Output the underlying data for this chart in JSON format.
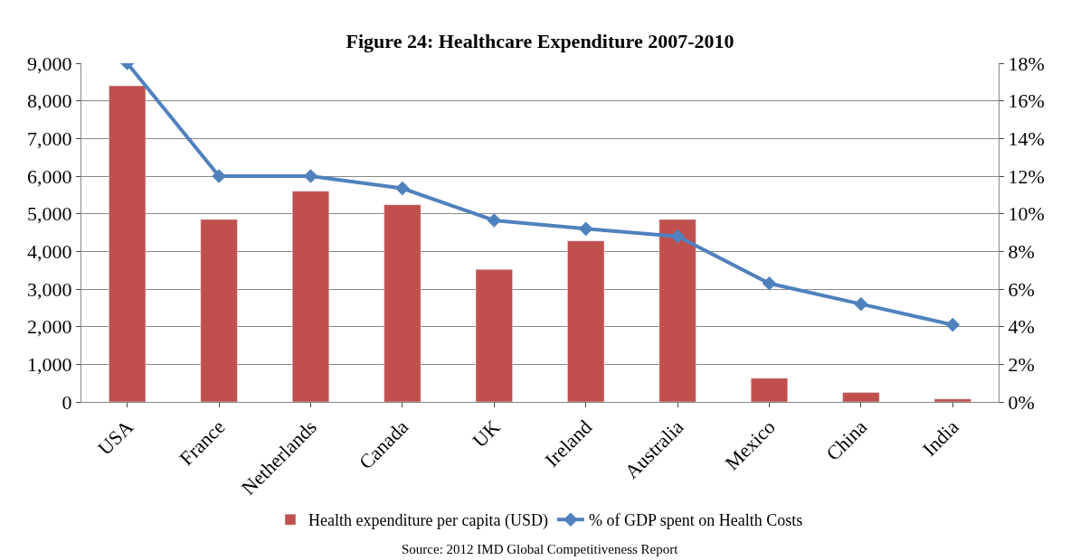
{
  "chart_data": {
    "type": "bar",
    "title": "Figure 24: Healthcare Expenditure 2007-2010",
    "categories": [
      "USA",
      "France",
      "Netherlands",
      "Canada",
      "UK",
      "Ireland",
      "Australia",
      "Mexico",
      "China",
      "India"
    ],
    "series": [
      {
        "name": "Health expenditure per capita (USD)",
        "color": "#c0504d",
        "values": [
          8400,
          4850,
          5600,
          5240,
          3520,
          4280,
          4850,
          630,
          250,
          80
        ]
      },
      {
        "name": "% of GDP spent on Health Costs",
        "color": "#4f81bd",
        "type": "line",
        "axis": "y2",
        "marker": "diamond",
        "values": [
          18,
          12,
          12,
          11.35,
          9.65,
          9.2,
          8.8,
          6.3,
          5.2,
          4.1
        ]
      }
    ],
    "ylim": [
      0,
      9000
    ],
    "yticks": [
      {
        "value": 0,
        "label": "0"
      },
      {
        "value": 1000,
        "label": "1,000"
      },
      {
        "value": 2000,
        "label": "2,000"
      },
      {
        "value": 3000,
        "label": "3,000"
      },
      {
        "value": 4000,
        "label": "4,000"
      },
      {
        "value": 5000,
        "label": "5,000"
      },
      {
        "value": 6000,
        "label": "6,000"
      },
      {
        "value": 7000,
        "label": "7,000"
      },
      {
        "value": 8000,
        "label": "8,000"
      },
      {
        "value": 9000,
        "label": "9,000"
      }
    ],
    "y2lim": [
      0,
      18
    ],
    "y2ticks": [
      {
        "value": 0,
        "label": "0%"
      },
      {
        "value": 2,
        "label": "2%"
      },
      {
        "value": 4,
        "label": "4%"
      },
      {
        "value": 6,
        "label": "6%"
      },
      {
        "value": 8,
        "label": "8%"
      },
      {
        "value": 10,
        "label": "10%"
      },
      {
        "value": 12,
        "label": "12%"
      },
      {
        "value": 14,
        "label": "14%"
      },
      {
        "value": 16,
        "label": "16%"
      },
      {
        "value": 18,
        "label": "18%"
      }
    ],
    "grid": "y",
    "legend": "bottom",
    "annotations": [
      "Source: 2012 IMD Global Competitiveness Report"
    ]
  }
}
